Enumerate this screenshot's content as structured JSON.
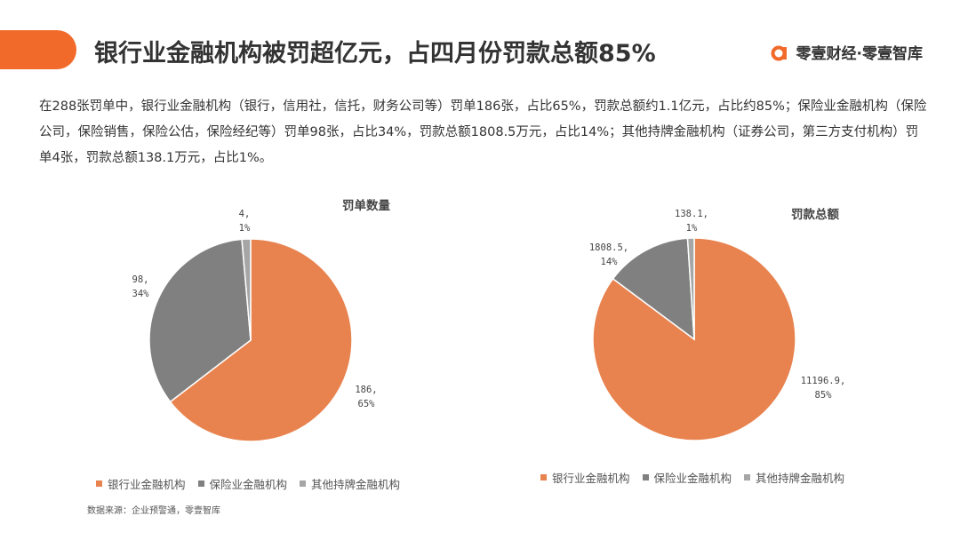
{
  "header": {
    "title": "银行业金融机构被罚超亿元，占四月份罚款总额85%",
    "brand": "零壹财经·零壹智库",
    "accent_color": "#f26a2a",
    "logo_icon": "brand-a-icon"
  },
  "intro": "在288张罚单中，银行业金融机构（银行，信用社，信托，财务公司等）罚单186张，占比65%，罚款总额约1.1亿元，占比约85%；保险业金融机构（保险公司，保险销售，保险公估，保险经纪等）罚单98张，占比34%，罚款总额1808.5万元，占比14%；其他持牌金融机构（证券公司，第三方支付机构）罚单4张，罚款总额138.1万元，占比1%。",
  "source": "数据来源：企业预警通，零壹智库",
  "colors": [
    "#e8834f",
    "#808080",
    "#a6a6a6"
  ],
  "chart_data": [
    {
      "type": "pie",
      "title": "罚单数量",
      "categories": [
        "银行业金融机构",
        "保险业金融机构",
        "其他持牌金融机构"
      ],
      "values": [
        186,
        98,
        4
      ],
      "labels": [
        [
          "186,",
          "65%"
        ],
        [
          "98,",
          "34%"
        ],
        [
          "4,",
          "1%"
        ]
      ],
      "legend": "bottom"
    },
    {
      "type": "pie",
      "title": "罚款总额",
      "categories": [
        "银行业金融机构",
        "保险业金融机构",
        "其他持牌金融机构"
      ],
      "values": [
        11196.9,
        1808.5,
        138.1
      ],
      "labels": [
        [
          "11196.9,",
          "85%"
        ],
        [
          "1808.5,",
          "14%"
        ],
        [
          "138.1,",
          "1%"
        ]
      ],
      "legend": "bottom"
    }
  ]
}
